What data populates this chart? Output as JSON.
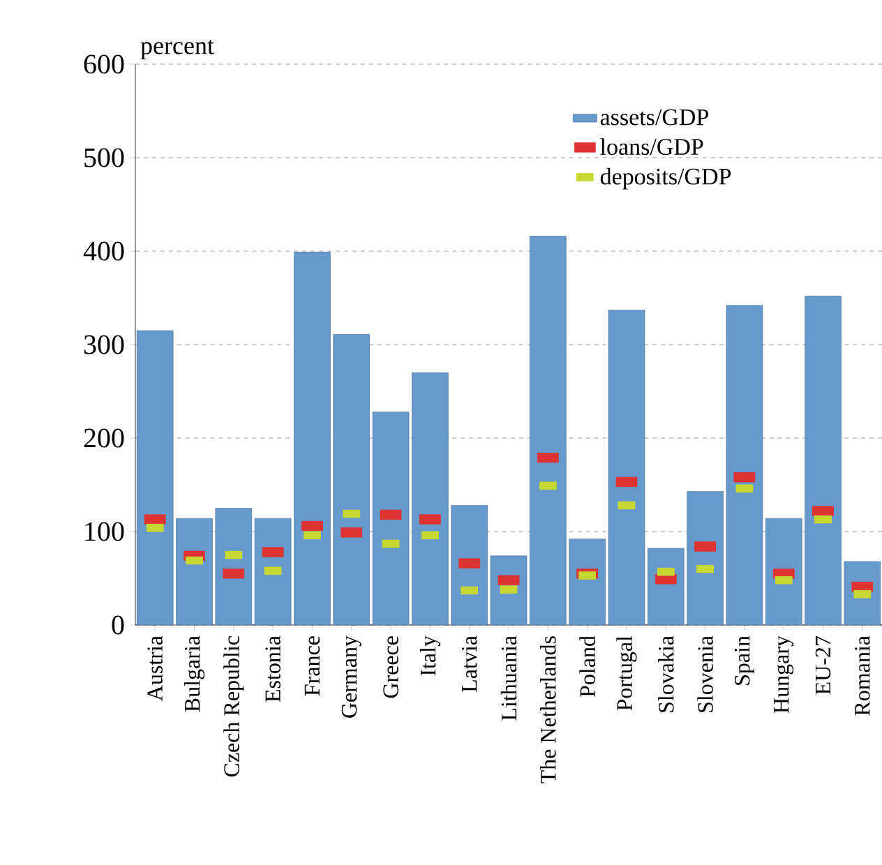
{
  "chart_data": {
    "type": "bar",
    "ylabel": "percent",
    "categories": [
      "Austria",
      "Bulgaria",
      "Czech Republic",
      "Estonia",
      "France",
      "Germany",
      "Greece",
      "Italy",
      "Latvia",
      "Lithuania",
      "The Netherlands",
      "Poland",
      "Portugal",
      "Slovakia",
      "Slovenia",
      "Spain",
      "Hungary",
      "EU-27",
      "Romania"
    ],
    "series": [
      {
        "name": "assets/GDP",
        "color": "#6699cc",
        "values": [
          315,
          114,
          125,
          114,
          399,
          311,
          228,
          270,
          128,
          74,
          416,
          92,
          337,
          82,
          143,
          342,
          114,
          352,
          68
        ]
      },
      {
        "name": "loans/GDP",
        "type": "scatter",
        "color": "#dd3333",
        "values": [
          113,
          74,
          55,
          78,
          106,
          99,
          118,
          113,
          66,
          48,
          179,
          55,
          153,
          49,
          84,
          158,
          55,
          122,
          41
        ]
      },
      {
        "name": "deposits/GDP",
        "type": "scatter",
        "color": "#c8d832",
        "values": [
          104,
          69,
          75,
          58,
          96,
          119,
          87,
          96,
          37,
          38,
          149,
          53,
          128,
          57,
          60,
          146,
          48,
          113,
          33
        ]
      }
    ],
    "ylim": [
      0,
      600
    ],
    "yticks": [
      0,
      100,
      200,
      300,
      400,
      500,
      600
    ],
    "grid": "y",
    "legend": "top right",
    "marker": "square"
  }
}
